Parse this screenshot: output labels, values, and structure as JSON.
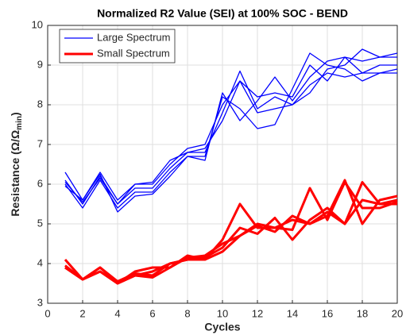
{
  "chart_data": {
    "type": "line",
    "title": "Normalized R2 Value (SEI) at 100% SOC - BEND",
    "x_label": "Cycles",
    "y_label": {
      "text": "Resistance (Ω/Ω",
      "subscript": "min",
      "suffix": ")"
    },
    "x": [
      1,
      2,
      3,
      4,
      5,
      6,
      7,
      8,
      9,
      10,
      11,
      12,
      13,
      14,
      15,
      16,
      17,
      18,
      19,
      20
    ],
    "xlim": [
      0,
      20
    ],
    "xticks": [
      0,
      2,
      4,
      6,
      8,
      10,
      12,
      14,
      16,
      18,
      20
    ],
    "ylim": [
      3,
      10
    ],
    "yticks": [
      3,
      4,
      5,
      6,
      7,
      8,
      9,
      10
    ],
    "grid": true,
    "legend": "northwest",
    "series": [
      {
        "name": "Large Spectrum",
        "color": "#0000ff",
        "width": 1.3,
        "runs": [
          [
            6.3,
            5.6,
            6.3,
            5.6,
            6.0,
            6.0,
            6.5,
            6.9,
            7.0,
            8.0,
            8.6,
            8.2,
            8.3,
            8.2,
            9.0,
            8.6,
            9.2,
            8.8,
            8.8,
            8.8
          ],
          [
            6.1,
            5.5,
            6.2,
            5.5,
            5.9,
            5.9,
            6.4,
            6.8,
            6.9,
            7.6,
            8.6,
            7.8,
            7.9,
            8.0,
            8.3,
            8.9,
            9.0,
            9.4,
            9.2,
            9.3
          ],
          [
            6.0,
            5.4,
            6.1,
            5.4,
            5.8,
            5.8,
            6.3,
            6.7,
            6.7,
            8.2,
            7.9,
            7.4,
            7.5,
            8.4,
            9.3,
            9.0,
            8.9,
            8.6,
            8.8,
            8.9
          ],
          [
            5.95,
            5.6,
            6.25,
            5.3,
            5.7,
            5.75,
            6.2,
            6.7,
            6.6,
            8.3,
            7.6,
            8.1,
            8.7,
            8.1,
            8.7,
            9.1,
            9.2,
            9.1,
            9.2,
            9.2
          ],
          [
            6.05,
            5.55,
            6.15,
            5.5,
            6.0,
            6.05,
            6.6,
            6.8,
            6.8,
            7.8,
            8.85,
            7.9,
            8.2,
            8.0,
            8.5,
            8.8,
            8.7,
            8.8,
            9.0,
            9.0
          ]
        ]
      },
      {
        "name": "Small Spectrum",
        "color": "#ff0000",
        "width": 3,
        "runs": [
          [
            4.1,
            3.6,
            3.9,
            3.5,
            3.8,
            3.9,
            3.9,
            4.2,
            4.1,
            4.6,
            5.5,
            4.9,
            4.9,
            5.1,
            5.0,
            5.2,
            6.1,
            5.0,
            5.6,
            5.7
          ],
          [
            3.9,
            3.6,
            3.9,
            3.55,
            3.75,
            3.7,
            4.0,
            4.1,
            4.15,
            4.4,
            4.9,
            4.75,
            5.15,
            4.6,
            5.1,
            5.4,
            5.0,
            6.05,
            5.5,
            5.5
          ],
          [
            3.95,
            3.6,
            3.8,
            3.5,
            3.7,
            3.65,
            3.9,
            4.15,
            4.2,
            4.5,
            4.7,
            5.0,
            4.9,
            4.85,
            5.9,
            5.1,
            6.05,
            5.4,
            5.4,
            5.55
          ],
          [
            3.9,
            3.6,
            3.8,
            3.5,
            3.7,
            3.8,
            4.0,
            4.1,
            4.1,
            4.3,
            4.7,
            4.95,
            4.8,
            5.2,
            5.0,
            5.3,
            5.0,
            5.6,
            5.5,
            5.6
          ]
        ]
      }
    ]
  }
}
